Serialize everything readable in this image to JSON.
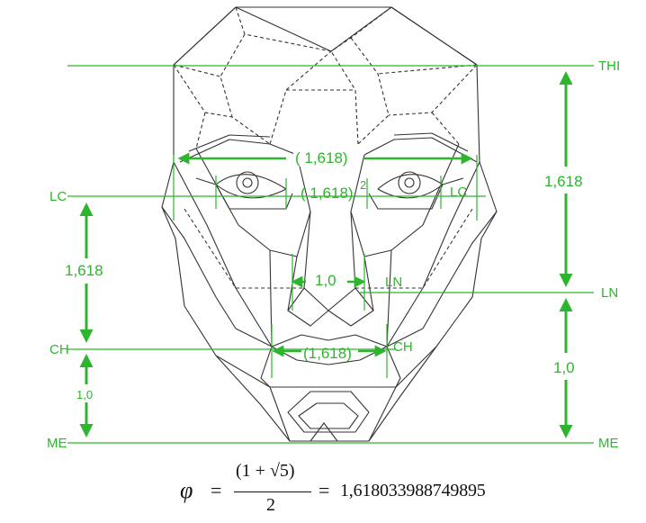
{
  "labels": {
    "thi": "THI",
    "lc_left": "LC",
    "lc_right": "LC",
    "ln_right": "LN",
    "ln_inner": "LN",
    "ch_left": "CH",
    "ch_right": "CH",
    "me_left": "ME",
    "me_right": "ME"
  },
  "ratios": {
    "eye_span": "( 1,618)",
    "eye_inner": "( 1,618)",
    "eye_inner_exp": "2",
    "nose_width": "1,0",
    "mouth_width": "(1,618)",
    "right_upper": "1,618",
    "right_lower": "1,0",
    "left_upper": "1,618",
    "left_lower": "1,0"
  },
  "formula": {
    "symbol": "φ",
    "equals": "=",
    "numerator": "(1 + √5)",
    "denominator": "2",
    "value": "1,618033988749895"
  },
  "colors": {
    "accent": "#2db52d",
    "line": "#333333"
  }
}
